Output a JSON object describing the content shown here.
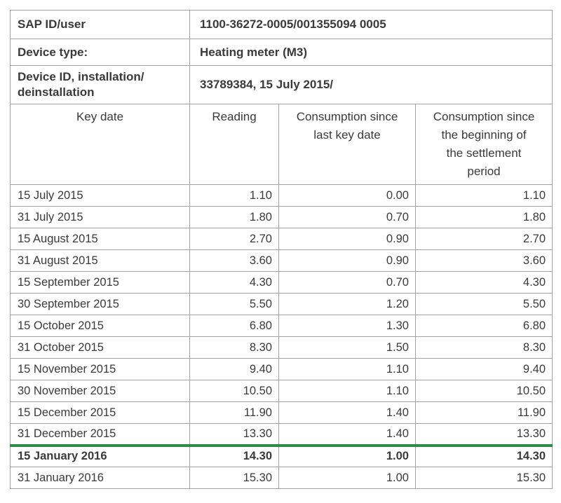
{
  "document": {
    "info_rows": [
      {
        "label": "SAP ID/user",
        "value": "1100-36272-0005/001355094 0005"
      },
      {
        "label": "Device type:",
        "value": "Heating meter (M3)"
      },
      {
        "label": "Device ID, installation/\ndeinstallation",
        "value": "33789384, 15 July 2015/"
      }
    ],
    "columns": [
      "Key date",
      "Reading",
      "Consumption since\nlast key date",
      "Consumption since\nthe beginning of\nthe settlement\nperiod"
    ],
    "rows": [
      {
        "key_date": "15 July 2015",
        "reading": "1.10",
        "consumption_since_last_key_date": "0.00",
        "consumption_since_settlement_start": "1.10",
        "highlighted": false
      },
      {
        "key_date": "31 July 2015",
        "reading": "1.80",
        "consumption_since_last_key_date": "0.70",
        "consumption_since_settlement_start": "1.80",
        "highlighted": false
      },
      {
        "key_date": "15 August 2015",
        "reading": "2.70",
        "consumption_since_last_key_date": "0.90",
        "consumption_since_settlement_start": "2.70",
        "highlighted": false
      },
      {
        "key_date": "31 August 2015",
        "reading": "3.60",
        "consumption_since_last_key_date": "0.90",
        "consumption_since_settlement_start": "3.60",
        "highlighted": false
      },
      {
        "key_date": "15 September 2015",
        "reading": "4.30",
        "consumption_since_last_key_date": "0.70",
        "consumption_since_settlement_start": "4.30",
        "highlighted": false
      },
      {
        "key_date": "30 September 2015",
        "reading": "5.50",
        "consumption_since_last_key_date": "1.20",
        "consumption_since_settlement_start": "5.50",
        "highlighted": false
      },
      {
        "key_date": "15 October 2015",
        "reading": "6.80",
        "consumption_since_last_key_date": "1.30",
        "consumption_since_settlement_start": "6.80",
        "highlighted": false
      },
      {
        "key_date": "31 October 2015",
        "reading": "8.30",
        "consumption_since_last_key_date": "1.50",
        "consumption_since_settlement_start": "8.30",
        "highlighted": false
      },
      {
        "key_date": "15 November 2015",
        "reading": "9.40",
        "consumption_since_last_key_date": "1.10",
        "consumption_since_settlement_start": "9.40",
        "highlighted": false
      },
      {
        "key_date": "30 November 2015",
        "reading": "10.50",
        "consumption_since_last_key_date": "1.10",
        "consumption_since_settlement_start": "10.50",
        "highlighted": false
      },
      {
        "key_date": "15 December 2015",
        "reading": "11.90",
        "consumption_since_last_key_date": "1.40",
        "consumption_since_settlement_start": "11.90",
        "highlighted": false
      },
      {
        "key_date": "31 December 2015",
        "reading": "13.30",
        "consumption_since_last_key_date": "1.40",
        "consumption_since_settlement_start": "13.30",
        "highlighted": false
      },
      {
        "key_date": "15 January 2016",
        "reading": "14.30",
        "consumption_since_last_key_date": "1.00",
        "consumption_since_settlement_start": "14.30",
        "highlighted": true
      },
      {
        "key_date": "31 January 2016",
        "reading": "15.30",
        "consumption_since_last_key_date": "1.00",
        "consumption_since_settlement_start": "15.30",
        "highlighted": false
      }
    ]
  },
  "colors": {
    "accent_green": "#2e8b44",
    "border_gray": "#a3a3a3",
    "text": "#3a3a3a"
  }
}
